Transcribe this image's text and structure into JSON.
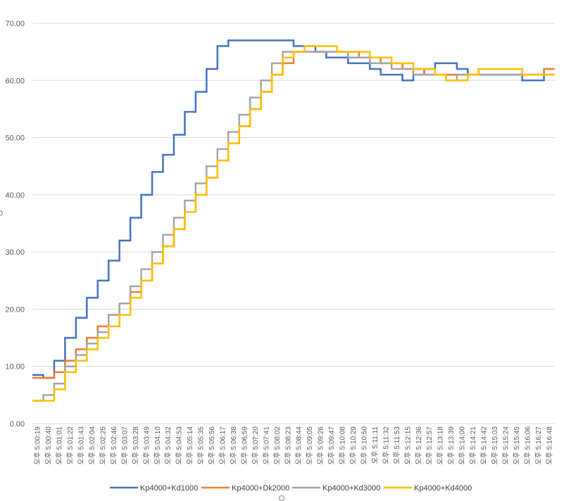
{
  "chart_data": {
    "type": "line",
    "step": true,
    "title": "",
    "xlabel": "",
    "ylabel": "",
    "ylim": [
      0,
      70
    ],
    "yticks": [
      "0.00",
      "10.00",
      "20.00",
      "30.00",
      "40.00",
      "50.00",
      "60.00",
      "70.00"
    ],
    "ytick_values": [
      0,
      10,
      20,
      30,
      40,
      50,
      60,
      70
    ],
    "categories": [
      "오후 5:00:19",
      "오후 5:00:40",
      "오후 5:01:01",
      "오후 5:01:22",
      "오후 5:01:43",
      "오후 5:02:04",
      "오후 5:02:25",
      "오후 5:02:46",
      "오후 5:03:07",
      "오후 5:03:28",
      "오후 5:03:49",
      "오후 5:04:10",
      "오후 5:04:32",
      "오후 5:04:53",
      "오후 5:05:14",
      "오후 5:05:35",
      "오후 5:05:56",
      "오후 5:06:17",
      "오후 5:06:38",
      "오후 5:06:59",
      "오후 5:07:20",
      "오후 5:07:41",
      "오후 5:08:02",
      "오후 5:08:23",
      "오후 5:08:44",
      "오후 5:09:05",
      "오후 5:09:26",
      "오후 5:09:47",
      "오후 5:10:08",
      "오후 5:10:29",
      "오후 5:10:50",
      "오후 5:11:11",
      "오후 5:11:32",
      "오후 5:11:53",
      "오후 5:12:15",
      "오후 5:12:36",
      "오후 5:12:57",
      "오후 5:13:18",
      "오후 5:13:39",
      "오후 5:14:00",
      "오후 5:14:21",
      "오후 5:14:42",
      "오후 5:15:03",
      "오후 5:15:24",
      "오후 5:15:45",
      "오후 5:16:06",
      "오후 5:16:27",
      "오후 5:16:48"
    ],
    "series": [
      {
        "name": "Kp4000+Kd1000",
        "color": "#4472C4",
        "values": [
          8.5,
          8,
          11,
          15,
          18.5,
          22,
          25,
          28.5,
          32,
          36,
          40,
          44,
          47,
          50.5,
          54.5,
          58,
          62,
          66,
          67,
          67,
          67,
          67,
          67,
          67,
          66,
          66,
          65,
          64,
          64,
          63,
          63,
          62,
          61,
          61,
          60,
          61,
          62,
          63,
          63,
          62,
          61,
          61,
          61,
          61,
          61,
          60,
          60,
          61
        ]
      },
      {
        "name": "Kp4000+Dk2000",
        "color": "#ED7D31",
        "values": [
          8,
          8,
          9,
          11,
          13,
          15,
          17,
          19,
          21,
          23,
          25,
          28,
          31,
          34,
          37,
          40,
          43,
          46,
          49,
          52,
          55,
          58,
          61,
          63,
          65,
          65,
          65,
          65,
          65,
          65,
          64,
          64,
          63,
          63,
          62,
          62,
          61,
          61,
          61,
          61,
          61,
          61,
          61,
          61,
          61,
          61,
          61,
          62
        ]
      },
      {
        "name": "Kp4000+Kd3000",
        "color": "#A5A5A5",
        "values": [
          4,
          5,
          7,
          10,
          12,
          14,
          16,
          19,
          21,
          24,
          27,
          30,
          33,
          36,
          39,
          42,
          45,
          48,
          51,
          54,
          57,
          60,
          63,
          65,
          65,
          65,
          65,
          65,
          65,
          64,
          64,
          63,
          63,
          62,
          62,
          61,
          61,
          61,
          60,
          61,
          61,
          61,
          61,
          61,
          61,
          61,
          61,
          61
        ]
      },
      {
        "name": "Kp4000+Kd4000",
        "color": "#FFC000",
        "values": [
          4,
          4,
          6,
          9,
          11,
          13,
          15,
          17,
          19,
          22,
          25,
          28,
          31,
          34,
          37,
          40,
          43,
          46,
          49,
          52,
          55,
          58,
          61,
          64,
          65,
          66,
          66,
          66,
          65,
          65,
          65,
          64,
          64,
          63,
          63,
          62,
          62,
          61,
          60,
          60,
          61,
          62,
          62,
          62,
          62,
          61,
          61,
          61
        ]
      }
    ],
    "legend_position": "bottom",
    "grid": true
  }
}
